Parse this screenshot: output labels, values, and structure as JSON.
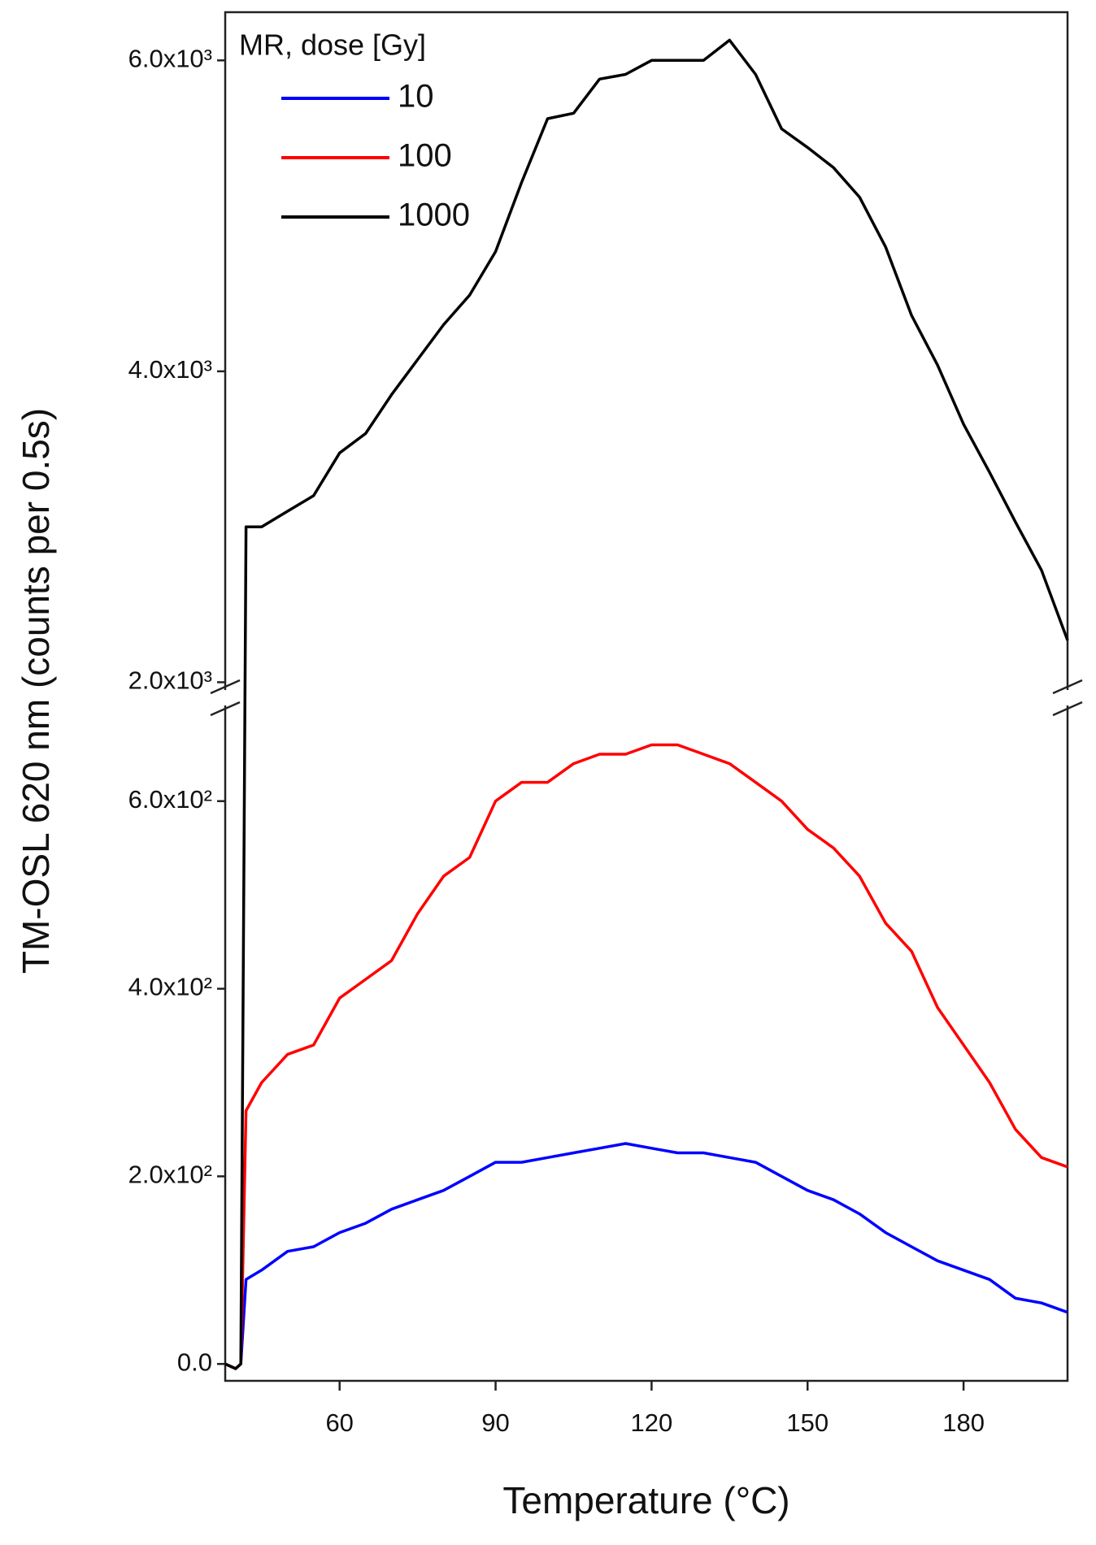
{
  "chart_data": {
    "type": "line",
    "x_label": "Temperature (°C)",
    "y_label": "TM-OSL 620 nm (counts per 0.5s)",
    "legend_title": "MR, dose [Gy]",
    "legend": "upper left",
    "x": [
      38,
      40,
      41,
      42,
      45,
      50,
      55,
      60,
      65,
      70,
      75,
      80,
      85,
      90,
      95,
      100,
      105,
      110,
      115,
      120,
      125,
      130,
      135,
      140,
      145,
      150,
      155,
      160,
      165,
      170,
      175,
      180,
      185,
      190,
      195,
      200
    ],
    "series": [
      {
        "name": "10",
        "color": "#0000ff",
        "values": [
          0,
          -5,
          0,
          90,
          100,
          120,
          125,
          140,
          150,
          165,
          175,
          185,
          200,
          215,
          215,
          220,
          225,
          230,
          235,
          230,
          225,
          225,
          220,
          215,
          200,
          185,
          175,
          160,
          140,
          125,
          110,
          100,
          90,
          70,
          65,
          55
        ]
      },
      {
        "name": "100",
        "color": "#ff0000",
        "values": [
          0,
          -5,
          0,
          270,
          300,
          330,
          340,
          390,
          410,
          430,
          480,
          520,
          540,
          600,
          620,
          620,
          640,
          650,
          650,
          660,
          660,
          650,
          640,
          620,
          600,
          570,
          550,
          520,
          470,
          440,
          380,
          340,
          300,
          250,
          220,
          210
        ]
      },
      {
        "name": "1000",
        "color": "#000000",
        "values": [
          0,
          -5,
          0,
          3000,
          3000,
          3100,
          3200,
          3475,
          3600,
          3850,
          4075,
          4300,
          4490,
          4770,
          5215,
          5625,
          5660,
          5880,
          5910,
          6000,
          6000,
          6000,
          6130,
          5910,
          5560,
          5440,
          5310,
          5120,
          4800,
          4360,
          4040,
          3660,
          3350,
          3030,
          2720,
          2270
        ]
      }
    ],
    "xlim": [
      38,
      200
    ],
    "xticks": [
      60,
      90,
      120,
      150,
      180
    ],
    "ylim": [
      -18,
      6310
    ],
    "ybreak": [
      702,
      1950
    ],
    "yticks": [
      {
        "value": 0,
        "label": "0.0"
      },
      {
        "value": 200,
        "label": "2.0x10²"
      },
      {
        "value": 400,
        "label": "4.0x10²"
      },
      {
        "value": 600,
        "label": "6.0x10²"
      },
      {
        "value": 2000,
        "label": "2.0x10³"
      },
      {
        "value": 4000,
        "label": "4.0x10³"
      },
      {
        "value": 6000,
        "label": "6.0x10³"
      }
    ]
  }
}
